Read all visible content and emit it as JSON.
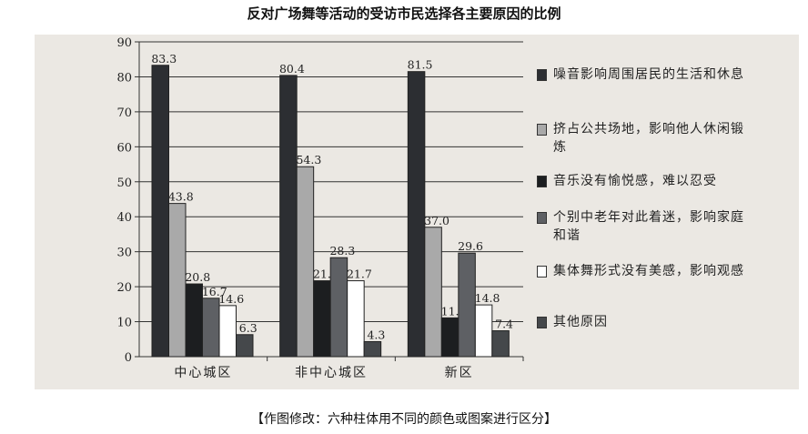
{
  "chart_data": {
    "type": "bar",
    "title": "反对广场舞等活动的受访市民选择各主要原因的比例",
    "categories": [
      "中心城区",
      "非中心城区",
      "新区"
    ],
    "ylim": [
      0,
      90
    ],
    "yticks": [
      0,
      10,
      20,
      30,
      40,
      50,
      60,
      70,
      80,
      90
    ],
    "grid": true,
    "legend_placement": "right",
    "series": [
      {
        "name": "噪音影响周围居民的生活和休息",
        "values": [
          83.3,
          80.4,
          81.5
        ],
        "color": "#2c2e32"
      },
      {
        "name": "挤占公共场地，影响他人休闲锻炼",
        "values": [
          43.8,
          54.3,
          37.0
        ],
        "color": "#a9a9a9"
      },
      {
        "name": "音乐没有愉悦感，难以忍受",
        "values": [
          20.8,
          21.7,
          11.1
        ],
        "color": "#1c1e20"
      },
      {
        "name": "个别中老年对此着迷，影响家庭和谐",
        "values": [
          16.7,
          28.3,
          29.6
        ],
        "color": "#5e6064"
      },
      {
        "name": "集体舞形式没有美感，影响观感",
        "values": [
          14.6,
          21.7,
          14.8
        ],
        "color": "#ffffff"
      },
      {
        "name": "其他原因",
        "values": [
          6.3,
          4.3,
          7.4
        ],
        "color": "#45484b"
      }
    ],
    "data_labels": [
      [
        "83.3",
        "43.8",
        "20.8",
        "16.7",
        "14.6",
        "6.3"
      ],
      [
        "80.4",
        "54.3",
        "21.7",
        "28.3",
        "21.7",
        "4.3"
      ],
      [
        "81.5",
        "37.0",
        "11.1",
        "29.6",
        "14.8",
        "7.4"
      ]
    ]
  },
  "caption": "【作图修改：六种柱体用不同的颜色或图案进行区分】"
}
